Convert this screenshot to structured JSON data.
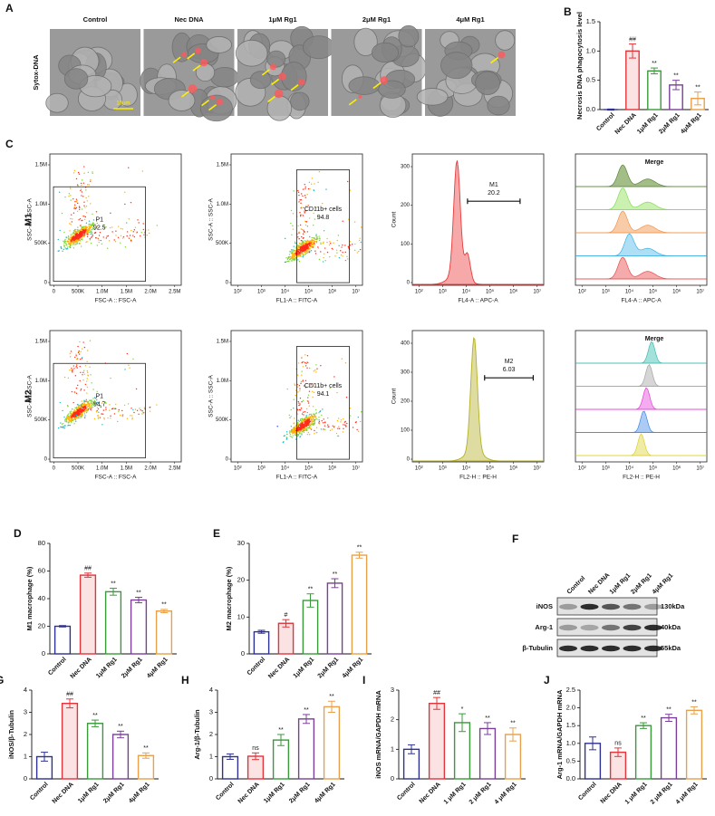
{
  "panel_a": {
    "letter": "A",
    "row_label": "Sytox-DNA",
    "columns": [
      "Control",
      "Nec DNA",
      "1μM Rg1",
      "2μM Rg1",
      "4μM Rg1"
    ],
    "scale_bar": "10μm"
  },
  "panel_c": {
    "letter": "C",
    "rows": [
      {
        "label": "M1",
        "gate_plot": {
          "gate": "P1",
          "percent": 92.5,
          "xlabel": "FSC-A :: FSC-A",
          "ylabel": "SSC-A :: SSC-A",
          "xticks": [
            "0",
            "500K",
            "1.0M",
            "1.5M",
            "2.0M",
            "2.5M"
          ],
          "yticks": [
            "0",
            "500K",
            "1.0M",
            "1.5M"
          ]
        },
        "cd11b_plot": {
          "gate": "CD11b+ cells",
          "percent": 94.8,
          "xlabel": "FL1-A :: FITC-A",
          "ylabel": "SSC-A :: SSC-A",
          "xticks": [
            "10²",
            "10³",
            "10⁴",
            "10⁵",
            "10⁶",
            "10⁷"
          ],
          "yticks": [
            "0",
            "500K",
            "1.0M",
            "1.5M"
          ]
        },
        "histogram": {
          "gate": "M1",
          "percent": 20.2,
          "xlabel": "FL4-A :: APC-A",
          "ylabel": "Count",
          "xticks": [
            "10²",
            "10³",
            "10⁴",
            "10⁵",
            "10⁶",
            "10⁷"
          ],
          "yticks": [
            0,
            100,
            200,
            300
          ]
        },
        "merge": {
          "title": "Merge",
          "xlabel": "FL4-A :: APC-A",
          "xticks": [
            "10²",
            "10³",
            "10⁴",
            "10⁵",
            "10⁶",
            "10⁷"
          ]
        }
      },
      {
        "label": "M2",
        "gate_plot": {
          "gate": "P1",
          "percent": 94.7,
          "xlabel": "FSC-A :: FSC-A",
          "ylabel": "SSC-A :: SSC-A",
          "xticks": [
            "0",
            "500K",
            "1.0M",
            "1.5M",
            "2.0M",
            "2.5M"
          ],
          "yticks": [
            "0",
            "500K",
            "1.0M",
            "1.5M"
          ]
        },
        "cd11b_plot": {
          "gate": "CD11b+ cells",
          "percent": 94.1,
          "xlabel": "FL1-A :: FITC-A",
          "ylabel": "SSC-A :: SSC-A",
          "xticks": [
            "10²",
            "10³",
            "10⁴",
            "10⁵",
            "10⁶",
            "10⁷"
          ],
          "yticks": [
            "0",
            "500K",
            "1.0M",
            "1.5M"
          ]
        },
        "histogram": {
          "gate": "M2",
          "percent": 6.03,
          "xlabel": "FL2-H :: PE-H",
          "ylabel": "Count",
          "xticks": [
            "10²",
            "10³",
            "10⁴",
            "10⁵",
            "10⁶",
            "10⁷"
          ],
          "yticks": [
            0,
            100,
            200,
            300,
            400
          ]
        },
        "merge": {
          "title": "Merge",
          "xlabel": "FL2-H :: PE-H",
          "xticks": [
            "10²",
            "10³",
            "10⁴",
            "10⁵",
            "10⁶",
            "10⁷"
          ]
        }
      }
    ]
  },
  "panel_f": {
    "letter": "F",
    "lanes": [
      "Control",
      "Nec DNA",
      "1μM Rg1",
      "2μM Rg1",
      "4μM Rg1"
    ],
    "rows": [
      {
        "protein": "iNOS",
        "size": "130kDa"
      },
      {
        "protein": "Arg-1",
        "size": "40kDa"
      },
      {
        "protein": "β-Tubulin",
        "size": "55kDa"
      }
    ]
  },
  "chart_data": [
    {
      "panel": "B",
      "type": "bar",
      "ylabel": "Necrosis DNA phagocytosis level",
      "categories": [
        "Control",
        "Nec DNA",
        "1μM Rg1",
        "2μM Rg1",
        "4μM Rg1"
      ],
      "values": [
        0,
        1.0,
        0.66,
        0.42,
        0.19
      ],
      "errors": [
        0.01,
        0.12,
        0.05,
        0.08,
        0.11
      ],
      "annotations": [
        null,
        "##",
        "**",
        "**",
        "**"
      ],
      "colors": [
        "#2e3192",
        "#e0353b",
        "#3a9a3a",
        "#7b3f98",
        "#e8a04a"
      ],
      "ylim": [
        0,
        1.5
      ],
      "yticks": [
        {
          "value": 0,
          "label": "0.0"
        },
        0.5,
        {
          "value": 1,
          "label": "1.0"
        },
        1.5
      ]
    },
    {
      "panel": "D",
      "type": "bar",
      "ylabel": "M1 macrophage (%)",
      "categories": [
        "Control",
        "Nec DNA",
        "1μM Rg1",
        "2μM Rg1",
        "4μM Rg1"
      ],
      "values": [
        20,
        57,
        45,
        39,
        31
      ],
      "errors": [
        0.5,
        1.5,
        2.5,
        2,
        1.2
      ],
      "annotations": [
        null,
        "##",
        "**",
        "**",
        "**"
      ],
      "colors": [
        "#2e3192",
        "#e0353b",
        "#3a9a3a",
        "#7b3f98",
        "#e8a04a"
      ],
      "ylim": [
        0,
        80
      ],
      "yticks": [
        0,
        20,
        40,
        60,
        80
      ]
    },
    {
      "panel": "E",
      "type": "bar",
      "ylabel": "M2 macrophage (%)",
      "categories": [
        "Control",
        "Nec DNA",
        "1μM Rg1",
        "2μM Rg1",
        "4μM Rg1"
      ],
      "values": [
        6,
        8.3,
        14.5,
        19.2,
        26.8
      ],
      "errors": [
        0.4,
        1.0,
        1.8,
        1.2,
        0.8
      ],
      "annotations": [
        null,
        "#",
        "**",
        "**",
        "**"
      ],
      "colors": [
        "#2e3192",
        "#e0353b",
        "#3a9a3a",
        "#7b3f98",
        "#e8a04a"
      ],
      "ylim": [
        0,
        30
      ],
      "yticks": [
        0,
        10,
        20,
        30
      ]
    },
    {
      "panel": "G",
      "type": "bar",
      "ylabel": "iNOS/β-Tubulin",
      "categories": [
        "Control",
        "Nec DNA",
        "1μM Rg1",
        "2μM Rg1",
        "4μM Rg1"
      ],
      "values": [
        1.0,
        3.4,
        2.5,
        2.0,
        1.05
      ],
      "errors": [
        0.2,
        0.2,
        0.15,
        0.15,
        0.12
      ],
      "annotations": [
        null,
        "##",
        "**",
        "**",
        "**"
      ],
      "colors": [
        "#2e3192",
        "#e0353b",
        "#3a9a3a",
        "#7b3f98",
        "#e8a04a"
      ],
      "ylim": [
        0,
        4
      ],
      "yticks": [
        0,
        1,
        2,
        3,
        4
      ]
    },
    {
      "panel": "H",
      "type": "bar",
      "ylabel": "Arg-1/β-Tubulin",
      "categories": [
        "Control",
        "Nec DNA",
        "1μM Rg1",
        "2μM Rg1",
        "4μM Rg1"
      ],
      "values": [
        1.0,
        1.02,
        1.75,
        2.7,
        3.25
      ],
      "errors": [
        0.12,
        0.15,
        0.25,
        0.2,
        0.25
      ],
      "annotations": [
        null,
        "ns",
        "**",
        "**",
        "**"
      ],
      "colors": [
        "#2e3192",
        "#e0353b",
        "#3a9a3a",
        "#7b3f98",
        "#e8a04a"
      ],
      "ylim": [
        0,
        4
      ],
      "yticks": [
        0,
        1,
        2,
        3,
        4
      ]
    },
    {
      "panel": "I",
      "type": "bar",
      "ylabel": "iNOS mRNA/GAPDH mRNA",
      "categories": [
        "Control",
        "Nec DNA",
        "1 μM Rg1",
        "2 μM Rg1",
        "4 μM Rg1"
      ],
      "values": [
        1.0,
        2.55,
        1.9,
        1.7,
        1.5
      ],
      "errors": [
        0.15,
        0.2,
        0.3,
        0.2,
        0.22
      ],
      "annotations": [
        null,
        "##",
        "*",
        "**",
        "**"
      ],
      "colors": [
        "#2e3192",
        "#e0353b",
        "#3a9a3a",
        "#7b3f98",
        "#e8a04a"
      ],
      "ylim": [
        0,
        3
      ],
      "yticks": [
        0,
        1,
        2,
        3
      ]
    },
    {
      "panel": "J",
      "type": "bar",
      "ylabel": "Arg-1 mRNA/GAPDH mRNA",
      "categories": [
        "Control",
        "Nec DNA",
        "1 μM Rg1",
        "2 μM Rg1",
        "4 μM Rg1"
      ],
      "values": [
        1.0,
        0.75,
        1.5,
        1.72,
        1.93
      ],
      "errors": [
        0.18,
        0.12,
        0.08,
        0.1,
        0.1
      ],
      "annotations": [
        null,
        "ns",
        "**",
        "**",
        "**"
      ],
      "colors": [
        "#2e3192",
        "#e0353b",
        "#3a9a3a",
        "#7b3f98",
        "#e8a04a"
      ],
      "ylim": [
        0,
        2.5
      ],
      "yticks": [
        {
          "value": 0,
          "label": "0.0"
        },
        0.5,
        {
          "value": 1,
          "label": "1.0"
        },
        1.5,
        {
          "value": 2,
          "label": "2.0"
        },
        2.5
      ]
    }
  ]
}
